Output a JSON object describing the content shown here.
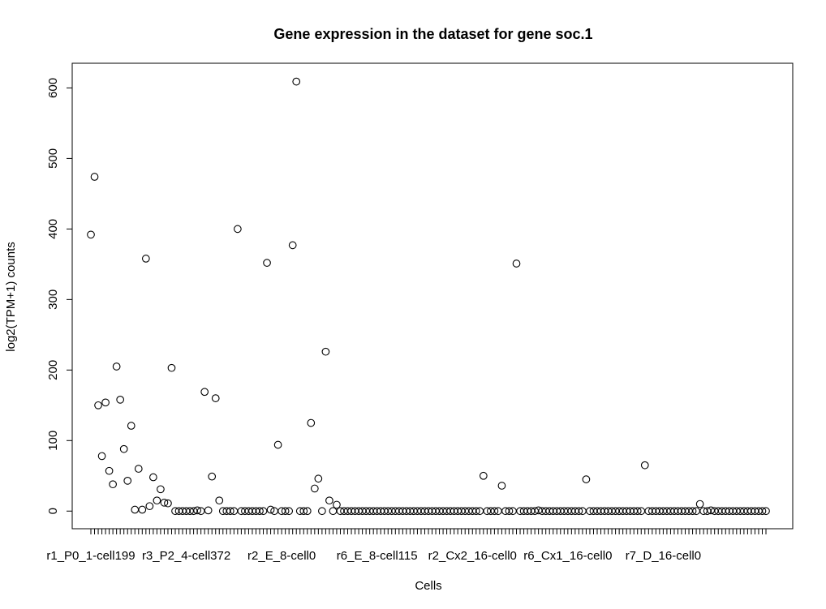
{
  "chart_data": {
    "type": "scatter",
    "title": "Gene expression in the dataset for gene soc.1",
    "xlabel": "Cells",
    "ylabel": "log2(TPM+1) counts",
    "ylim": [
      -25,
      635
    ],
    "y_ticks": [
      0,
      100,
      200,
      300,
      400,
      500,
      600
    ],
    "x_tick_labels": [
      {
        "index": 1,
        "label": "r1_P0_1-cell199"
      },
      {
        "index": 27,
        "label": "r3_P2_4-cell372"
      },
      {
        "index": 53,
        "label": "r2_E_8-cell0"
      },
      {
        "index": 79,
        "label": "r6_E_8-cell115"
      },
      {
        "index": 105,
        "label": "r2_Cx2_16-cell0"
      },
      {
        "index": 131,
        "label": "r6_Cx1_16-cell0"
      },
      {
        "index": 157,
        "label": "r7_D_16-cell0"
      }
    ],
    "grid": false,
    "marker": "open-circle",
    "colors": {
      "marker": "#000000",
      "axes": "#000000",
      "background": "#ffffff"
    },
    "values": [
      392,
      474,
      150,
      78,
      154,
      57,
      38,
      205,
      158,
      88,
      43,
      121,
      2,
      60,
      2,
      358,
      7,
      48,
      15,
      31,
      12,
      11,
      203,
      0,
      0,
      0,
      0,
      0,
      0,
      1,
      0,
      169,
      1,
      49,
      160,
      15,
      0,
      0,
      0,
      0,
      400,
      0,
      0,
      0,
      0,
      0,
      0,
      0,
      352,
      2,
      0,
      94,
      0,
      0,
      0,
      377,
      609,
      0,
      0,
      0,
      125,
      32,
      46,
      0,
      226,
      15,
      0,
      9,
      0,
      0,
      0,
      0,
      0,
      0,
      0,
      0,
      0,
      0,
      0,
      0,
      0,
      0,
      0,
      0,
      0,
      0,
      0,
      0,
      0,
      0,
      0,
      0,
      0,
      0,
      0,
      0,
      0,
      0,
      0,
      0,
      0,
      0,
      0,
      0,
      0,
      0,
      0,
      50,
      0,
      0,
      0,
      0,
      36,
      0,
      0,
      0,
      351,
      0,
      0,
      0,
      0,
      0,
      1,
      0,
      0,
      0,
      0,
      0,
      0,
      0,
      0,
      0,
      0,
      0,
      0,
      45,
      0,
      0,
      0,
      0,
      0,
      0,
      0,
      0,
      0,
      0,
      0,
      0,
      0,
      0,
      0,
      65,
      0,
      0,
      0,
      0,
      0,
      0,
      0,
      0,
      0,
      0,
      0,
      0,
      0,
      0,
      10,
      0,
      0,
      1,
      0,
      0,
      0,
      0,
      0,
      0,
      0,
      0,
      0,
      0,
      0,
      0,
      0,
      0,
      0
    ]
  }
}
